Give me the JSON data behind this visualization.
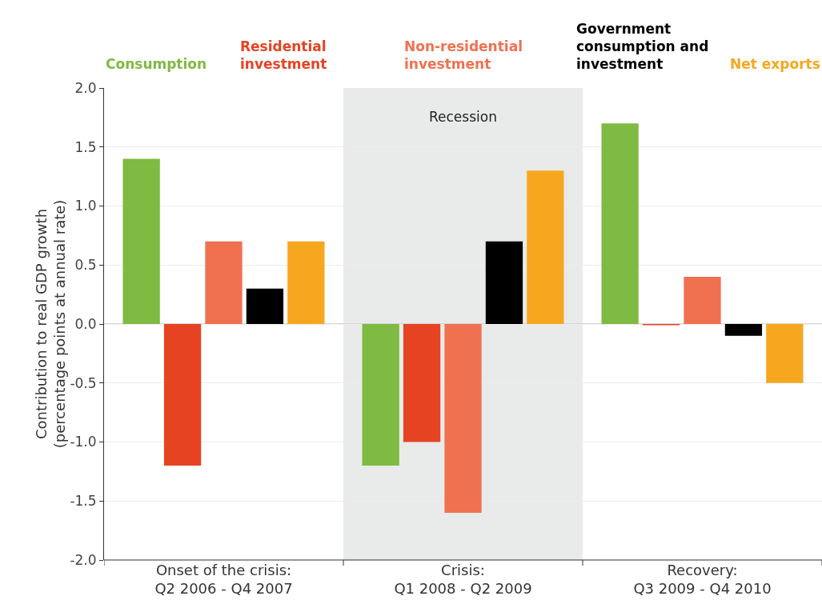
{
  "chart_data": {
    "type": "bar",
    "ylabel": "Contribution to real GDP growth (percentage points at annual rate)",
    "categories": [
      "Onset of the crisis: Q2 2006 - Q4 2007",
      "Crisis: Q1 2008 - Q2 2009",
      "Recovery: Q3 2009 - Q4 2010"
    ],
    "series": [
      {
        "name": "Consumption",
        "color": "#7fba42",
        "values": [
          1.4,
          -1.2,
          1.7
        ]
      },
      {
        "name": "Residential investment",
        "color": "#e64323",
        "values": [
          -1.2,
          -1.0,
          -0.01
        ]
      },
      {
        "name": "Non-residential investment",
        "color": "#f07150",
        "values": [
          0.7,
          -1.6,
          0.4
        ]
      },
      {
        "name": "Government consumption and investment",
        "color": "#000000",
        "values": [
          0.3,
          0.7,
          -0.1
        ]
      },
      {
        "name": "Net exports",
        "color": "#f6a71f",
        "values": [
          0.7,
          1.3,
          -0.5
        ]
      }
    ],
    "ylim": [
      -2.0,
      2.0
    ],
    "yticks": [
      {
        "value": -2,
        "label": "-2.0"
      },
      {
        "value": -1.5,
        "label": "-1.5"
      },
      {
        "value": -1,
        "label": "-1.0"
      },
      {
        "value": -0.5,
        "label": "-0.5"
      },
      {
        "value": 0,
        "label": "0.0"
      },
      {
        "value": 0.5,
        "label": "0.5"
      },
      {
        "value": 1,
        "label": "1.0"
      },
      {
        "value": 1.5,
        "label": "1.5"
      },
      {
        "value": 2,
        "label": "2.0"
      }
    ],
    "bands": [
      {
        "axis": "x",
        "from": "Crisis: Q1 2008 - Q2 2009",
        "to": "Crisis: Q1 2008 - Q2 2009",
        "label": "Recession",
        "color": "#e9ebea"
      }
    ],
    "grid": "y",
    "legend": "top"
  }
}
